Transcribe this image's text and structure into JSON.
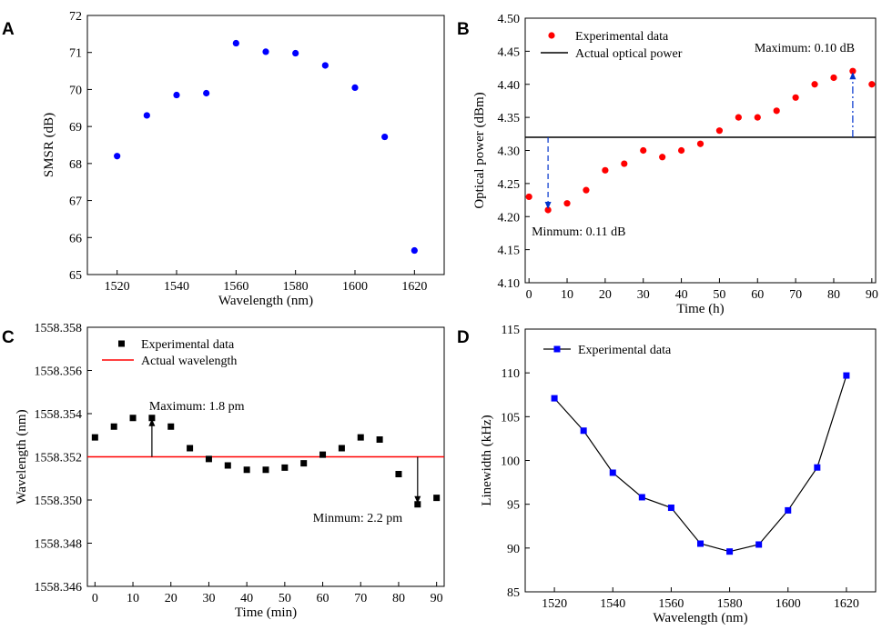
{
  "colors": {
    "blue": "#0000ff",
    "red": "#ff0000",
    "black": "#000000",
    "dashblue": "#0033cc"
  },
  "chart_data": [
    {
      "panel": "A",
      "type": "scatter",
      "xlabel": "Wavelength (nm)",
      "ylabel": "SMSR (dB)",
      "xlim": [
        1510,
        1630
      ],
      "ylim": [
        65,
        72
      ],
      "xticks": [
        1520,
        1540,
        1560,
        1580,
        1600,
        1620
      ],
      "yticks": [
        65,
        66,
        67,
        68,
        69,
        70,
        71,
        72
      ],
      "series": [
        {
          "name": "SMSR",
          "color": "#0000ff",
          "marker": "circle",
          "x": [
            1520,
            1530,
            1540,
            1550,
            1560,
            1570,
            1580,
            1590,
            1600,
            1610,
            1620
          ],
          "y": [
            68.2,
            69.3,
            69.85,
            69.9,
            71.25,
            71.02,
            70.98,
            70.65,
            70.05,
            68.72,
            65.65
          ]
        }
      ]
    },
    {
      "panel": "B",
      "type": "scatter",
      "xlabel": "Time (h)",
      "ylabel": "Optical power (dBm)",
      "xlim": [
        -1,
        91
      ],
      "ylim": [
        4.1,
        4.5
      ],
      "xticks": [
        0,
        10,
        20,
        30,
        40,
        50,
        60,
        70,
        80,
        90
      ],
      "yticks": [
        4.1,
        4.15,
        4.2,
        4.25,
        4.3,
        4.35,
        4.4,
        4.45,
        4.5
      ],
      "ytick_labels": [
        "4.10",
        "4.15",
        "4.20",
        "4.25",
        "4.30",
        "4.35",
        "4.40",
        "4.45",
        "4.50"
      ],
      "legend": [
        "Experimental data",
        "Actual optical power"
      ],
      "reference_line": {
        "name": "Actual optical power",
        "y": 4.32,
        "color": "#000000"
      },
      "series": [
        {
          "name": "Experimental data",
          "color": "#ff0000",
          "marker": "circle",
          "x": [
            0,
            5,
            10,
            15,
            20,
            25,
            30,
            35,
            40,
            45,
            50,
            55,
            60,
            65,
            70,
            75,
            80,
            85,
            90
          ],
          "y": [
            4.23,
            4.21,
            4.22,
            4.24,
            4.27,
            4.28,
            4.3,
            4.29,
            4.3,
            4.31,
            4.33,
            4.35,
            4.35,
            4.36,
            4.38,
            4.4,
            4.41,
            4.42,
            4.4
          ]
        }
      ],
      "annotations": [
        {
          "text": "Maximum: 0.10 dB",
          "x": 85,
          "y_from": 4.32,
          "y_to": 4.42
        },
        {
          "text": "Minmum: 0.11 dB",
          "x": 5,
          "y_from": 4.32,
          "y_to": 4.21
        }
      ]
    },
    {
      "panel": "C",
      "type": "scatter",
      "xlabel": "Time (min)",
      "ylabel": "Wavelength (nm)",
      "xlim": [
        -2,
        92
      ],
      "ylim": [
        1558.346,
        1558.358
      ],
      "xticks": [
        0,
        10,
        20,
        30,
        40,
        50,
        60,
        70,
        80,
        90
      ],
      "yticks": [
        1558.346,
        1558.348,
        1558.35,
        1558.352,
        1558.354,
        1558.356,
        1558.358
      ],
      "ytick_labels": [
        "1558.346",
        "1558.348",
        "1558.350",
        "1558.352",
        "1558.354",
        "1558.356",
        "1558.358"
      ],
      "legend": [
        "Experimental data",
        "Actual wavelength"
      ],
      "reference_line": {
        "name": "Actual wavelength",
        "y": 1558.352,
        "color": "#ff0000"
      },
      "series": [
        {
          "name": "Experimental data",
          "color": "#000000",
          "marker": "square",
          "x": [
            0,
            5,
            10,
            15,
            20,
            25,
            30,
            35,
            40,
            45,
            50,
            55,
            60,
            65,
            70,
            75,
            80,
            85,
            90
          ],
          "y": [
            1558.3529,
            1558.3534,
            1558.3538,
            1558.3538,
            1558.3534,
            1558.3524,
            1558.3519,
            1558.3516,
            1558.3514,
            1558.3514,
            1558.3515,
            1558.3517,
            1558.3521,
            1558.3524,
            1558.3529,
            1558.3528,
            1558.3512,
            1558.3498,
            1558.3501
          ]
        }
      ],
      "annotations": [
        {
          "text": "Maximum: 1.8 pm",
          "x": 15,
          "y_from": 1558.352,
          "y_to": 1558.3538
        },
        {
          "text": "Minmum: 2.2 pm",
          "x": 85,
          "y_from": 1558.352,
          "y_to": 1558.3498
        }
      ]
    },
    {
      "panel": "D",
      "type": "line",
      "xlabel": "Wavelength (nm)",
      "ylabel": "Linewidth (kHz)",
      "xlim": [
        1510,
        1630
      ],
      "ylim": [
        85,
        115
      ],
      "xticks": [
        1520,
        1540,
        1560,
        1580,
        1600,
        1620
      ],
      "yticks": [
        85,
        90,
        95,
        100,
        105,
        110,
        115
      ],
      "legend": [
        "Experimental data"
      ],
      "series": [
        {
          "name": "Experimental data",
          "color": "#0000ff",
          "line_color": "#000000",
          "marker": "square",
          "x": [
            1520,
            1530,
            1540,
            1550,
            1560,
            1570,
            1580,
            1590,
            1600,
            1610,
            1620
          ],
          "y": [
            107.1,
            103.4,
            98.6,
            95.8,
            94.6,
            90.5,
            89.6,
            90.4,
            94.3,
            99.2,
            109.7
          ]
        }
      ]
    }
  ]
}
